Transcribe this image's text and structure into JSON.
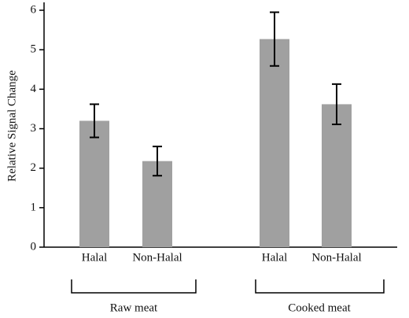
{
  "chart_data": {
    "type": "bar",
    "ylabel": "Relative Signal Change",
    "categories": [
      "Halal",
      "Non-Halal",
      "Halal",
      "Non-Halal"
    ],
    "values": [
      3.2,
      2.18,
      5.27,
      3.62
    ],
    "errors": [
      0.42,
      0.37,
      0.68,
      0.51
    ],
    "groups": [
      "Raw meat",
      "Cooked meat"
    ],
    "color": "#a0a0a0",
    "ylim": [
      0,
      6.2
    ],
    "yticks": [
      0,
      1,
      2,
      3,
      4,
      5,
      6
    ]
  }
}
